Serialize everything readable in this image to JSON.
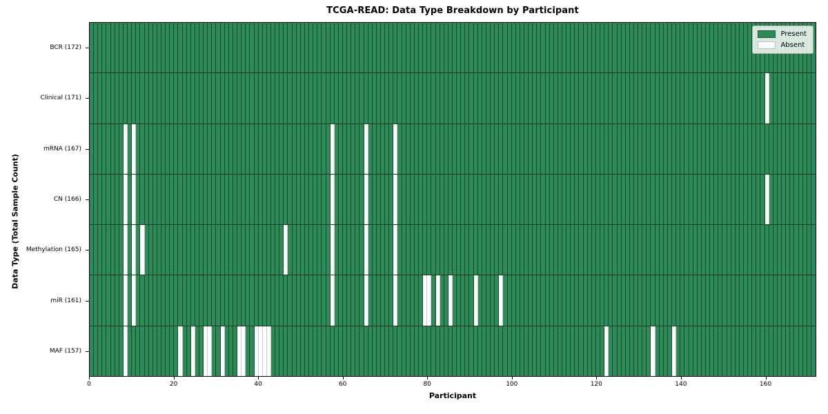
{
  "title": "TCGA-READ: Data Type Breakdown by Participant",
  "chart_data": {
    "type": "heatmap",
    "title": "TCGA-READ: Data Type Breakdown by Participant",
    "xlabel": "Participant",
    "ylabel": "Data Type (Total Sample Count)",
    "n_participants": 172,
    "xlim": [
      0,
      172
    ],
    "x_ticks": [
      0,
      20,
      40,
      60,
      80,
      100,
      120,
      140,
      160
    ],
    "grid": true,
    "legend_position": "upper right",
    "legend": [
      {
        "label": "Present",
        "color": "#2e8b57"
      },
      {
        "label": "Absent",
        "color": "#ffffff"
      }
    ],
    "value_encoding": {
      "present": 1,
      "absent": 0
    },
    "rows": [
      {
        "label": "BCR (172)",
        "data_type": "BCR",
        "total_samples": 172,
        "absent_participants": []
      },
      {
        "label": "Clinical (171)",
        "data_type": "Clinical",
        "total_samples": 171,
        "absent_participants": [
          160
        ]
      },
      {
        "label": "mRNA (167)",
        "data_type": "mRNA",
        "total_samples": 167,
        "absent_participants": [
          8,
          10,
          57,
          65,
          72
        ]
      },
      {
        "label": "CN (166)",
        "data_type": "CN",
        "total_samples": 166,
        "absent_participants": [
          8,
          10,
          57,
          65,
          72,
          160
        ]
      },
      {
        "label": "Methylation (165)",
        "data_type": "Methylation",
        "total_samples": 165,
        "absent_participants": [
          8,
          10,
          12,
          46,
          57,
          65,
          72
        ]
      },
      {
        "label": "miR (161)",
        "data_type": "miR",
        "total_samples": 161,
        "absent_participants": [
          8,
          10,
          57,
          65,
          72,
          79,
          80,
          82,
          85,
          91,
          97
        ]
      },
      {
        "label": "MAF (157)",
        "data_type": "MAF",
        "total_samples": 157,
        "absent_participants": [
          8,
          21,
          24,
          27,
          28,
          31,
          35,
          36,
          39,
          40,
          41,
          42,
          122,
          133,
          138
        ]
      }
    ],
    "colors": {
      "present": "#2e8b57",
      "absent": "#ffffff",
      "gridline_on_green": "rgba(0,0,0,0.48)",
      "gridline_on_white": "#c9c9c9",
      "border": "#000000"
    }
  }
}
